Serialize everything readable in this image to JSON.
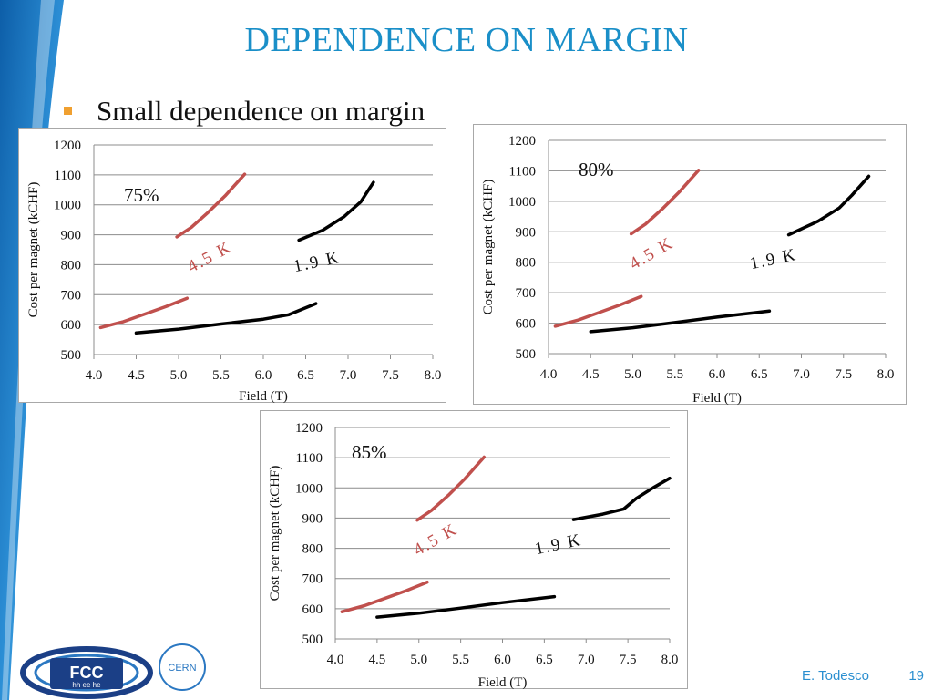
{
  "slide": {
    "title": "DEPENDENCE ON MARGIN",
    "bullet": "Small dependence on margin",
    "author": "E. Todesco",
    "page_number": "19",
    "accent_color": "#1a8fc8"
  },
  "logos": {
    "fcc_text": "FCC",
    "fcc_sub": "hh ee he",
    "cern_text": "CERN"
  },
  "chart_data": [
    {
      "type": "line",
      "annotation": "75%",
      "xlabel": "Field (T)",
      "ylabel": "Cost per magnet (kCHF)",
      "xlim": [
        4.0,
        8.0
      ],
      "ylim": [
        500,
        1200
      ],
      "xticks": [
        "4.0",
        "4.5",
        "5.0",
        "5.5",
        "6.0",
        "6.5",
        "7.0",
        "7.5",
        "8.0"
      ],
      "yticks": [
        "500",
        "600",
        "700",
        "800",
        "900",
        "1000",
        "1100",
        "1200"
      ],
      "grid": true,
      "series": [
        {
          "name": "4.5 K",
          "color": "#c0504d",
          "x": [
            4.08,
            4.35,
            4.6,
            4.85,
            5.1
          ],
          "y": [
            590,
            610,
            635,
            660,
            688
          ]
        },
        {
          "name": "4.5 K",
          "color": "#c0504d",
          "x": [
            4.98,
            5.15,
            5.35,
            5.55,
            5.78
          ],
          "y": [
            893,
            925,
            975,
            1030,
            1102
          ]
        },
        {
          "name": "1.9 K",
          "color": "#000000",
          "x": [
            4.5,
            5.0,
            5.5,
            6.0,
            6.3,
            6.62
          ],
          "y": [
            572,
            585,
            602,
            618,
            633,
            670
          ]
        },
        {
          "name": "1.9 K",
          "color": "#000000",
          "x": [
            6.42,
            6.7,
            6.95,
            7.15,
            7.3
          ],
          "y": [
            882,
            915,
            960,
            1010,
            1075
          ]
        }
      ],
      "labels": {
        "hot": "4.5 K",
        "cold": "1.9 K"
      }
    },
    {
      "type": "line",
      "annotation": "80%",
      "xlabel": "Field (T)",
      "ylabel": "Cost per magnet (kCHF)",
      "xlim": [
        4.0,
        8.0
      ],
      "ylim": [
        500,
        1200
      ],
      "xticks": [
        "4.0",
        "4.5",
        "5.0",
        "5.5",
        "6.0",
        "6.5",
        "7.0",
        "7.5",
        "8.0"
      ],
      "yticks": [
        "500",
        "600",
        "700",
        "800",
        "900",
        "1000",
        "1100",
        "1200"
      ],
      "grid": true,
      "series": [
        {
          "name": "4.5 K",
          "color": "#c0504d",
          "x": [
            4.08,
            4.35,
            4.6,
            4.85,
            5.1
          ],
          "y": [
            590,
            610,
            635,
            660,
            688
          ]
        },
        {
          "name": "4.5 K",
          "color": "#c0504d",
          "x": [
            4.98,
            5.15,
            5.35,
            5.55,
            5.78
          ],
          "y": [
            893,
            925,
            975,
            1030,
            1102
          ]
        },
        {
          "name": "1.9 K",
          "color": "#000000",
          "x": [
            4.5,
            5.0,
            5.5,
            6.0,
            6.62
          ],
          "y": [
            572,
            585,
            602,
            620,
            640
          ]
        },
        {
          "name": "1.9 K",
          "color": "#000000",
          "x": [
            6.85,
            7.2,
            7.45,
            7.6,
            7.8
          ],
          "y": [
            890,
            935,
            978,
            1020,
            1082
          ]
        }
      ],
      "labels": {
        "hot": "4.5 K",
        "cold": "1.9 K"
      }
    },
    {
      "type": "line",
      "annotation": "85%",
      "xlabel": "Field (T)",
      "ylabel": "Cost per magnet (kCHF)",
      "xlim": [
        4.0,
        8.0
      ],
      "ylim": [
        500,
        1200
      ],
      "xticks": [
        "4.0",
        "4.5",
        "5.0",
        "5.5",
        "6.0",
        "6.5",
        "7.0",
        "7.5",
        "8.0"
      ],
      "yticks": [
        "500",
        "600",
        "700",
        "800",
        "900",
        "1000",
        "1100",
        "1200"
      ],
      "grid": true,
      "series": [
        {
          "name": "4.5 K",
          "color": "#c0504d",
          "x": [
            4.08,
            4.35,
            4.6,
            4.85,
            5.1
          ],
          "y": [
            590,
            610,
            635,
            660,
            688
          ]
        },
        {
          "name": "4.5 K",
          "color": "#c0504d",
          "x": [
            4.98,
            5.15,
            5.35,
            5.55,
            5.78
          ],
          "y": [
            893,
            925,
            975,
            1030,
            1102
          ]
        },
        {
          "name": "1.9 K",
          "color": "#000000",
          "x": [
            4.5,
            5.0,
            5.5,
            6.0,
            6.62
          ],
          "y": [
            572,
            585,
            602,
            620,
            640
          ]
        },
        {
          "name": "1.9 K",
          "color": "#000000",
          "x": [
            6.85,
            7.2,
            7.45,
            7.6,
            7.8,
            8.0
          ],
          "y": [
            895,
            913,
            930,
            965,
            1000,
            1032
          ]
        }
      ],
      "labels": {
        "hot": "4.5 K",
        "cold": "1.9 K"
      }
    }
  ]
}
